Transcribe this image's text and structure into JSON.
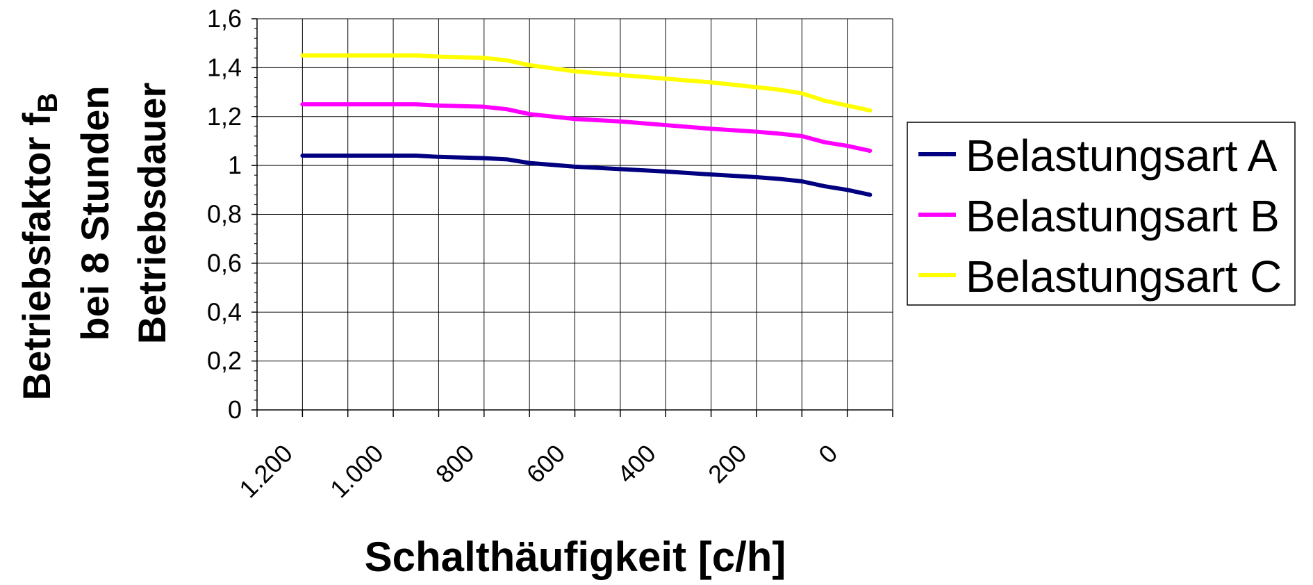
{
  "chart_data": {
    "type": "line",
    "ylabel_lines": [
      "Betriebsfaktor f",
      "bei 8 Stunden",
      "Betriebsdauer"
    ],
    "ylabel_subscript": "B",
    "xlabel": "Schalthäufigkeit [c/h]",
    "x_tick_labels": [
      "1.200",
      "1.000",
      "800",
      "600",
      "400",
      "200",
      "0"
    ],
    "x_ticks": [
      1200,
      1000,
      800,
      600,
      400,
      200,
      0
    ],
    "xlim": [
      1300,
      -100
    ],
    "y_tick_labels": [
      "0",
      "0,2",
      "0,4",
      "0,6",
      "0,8",
      "1",
      "1,2",
      "1,4",
      "1,6"
    ],
    "ylim": [
      0,
      1.6
    ],
    "grid": true,
    "legend_position": "right",
    "x": [
      1200,
      1100,
      1000,
      950,
      900,
      800,
      750,
      700,
      600,
      500,
      400,
      300,
      200,
      150,
      100,
      50,
      0,
      -50
    ],
    "series": [
      {
        "name": "Belastungsart A",
        "color": "#000080",
        "values": [
          1.04,
          1.04,
          1.04,
          1.04,
          1.035,
          1.03,
          1.025,
          1.01,
          0.995,
          0.985,
          0.975,
          0.963,
          0.952,
          0.945,
          0.935,
          0.915,
          0.9,
          0.88
        ]
      },
      {
        "name": "Belastungsart B",
        "color": "#FF00FF",
        "values": [
          1.25,
          1.25,
          1.25,
          1.25,
          1.245,
          1.24,
          1.23,
          1.21,
          1.19,
          1.18,
          1.165,
          1.15,
          1.138,
          1.13,
          1.12,
          1.095,
          1.08,
          1.06
        ]
      },
      {
        "name": "Belastungsart C",
        "color": "#FFFF00",
        "values": [
          1.45,
          1.45,
          1.45,
          1.45,
          1.445,
          1.44,
          1.43,
          1.41,
          1.385,
          1.37,
          1.355,
          1.34,
          1.32,
          1.31,
          1.295,
          1.265,
          1.245,
          1.225
        ]
      }
    ]
  }
}
